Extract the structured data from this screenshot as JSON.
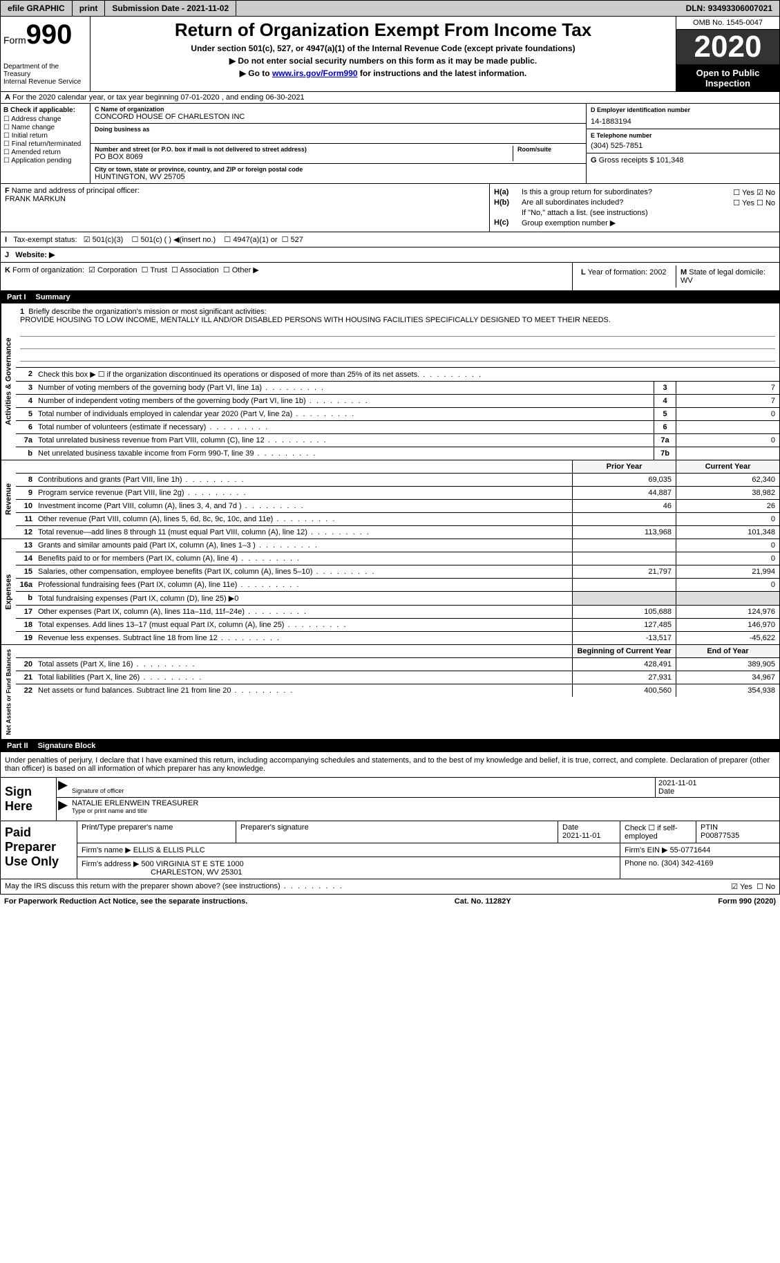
{
  "topbar": {
    "efile": "efile GRAPHIC",
    "print": "print",
    "subdate_lbl": "Submission Date - ",
    "subdate": "2021-11-02",
    "dln_lbl": "DLN: ",
    "dln": "93493306007021"
  },
  "header": {
    "form": "Form",
    "n990": "990",
    "dept": "Department of the Treasury\nInternal Revenue Service",
    "title": "Return of Organization Exempt From Income Tax",
    "sub1": "Under section 501(c), 527, or 4947(a)(1) of the Internal Revenue Code (except private foundations)",
    "sub2": "Do not enter social security numbers on this form as it may be made public.",
    "sub3a": "Go to ",
    "sub3link": "www.irs.gov/Form990",
    "sub3b": " for instructions and the latest information.",
    "omb": "OMB No. 1545-0047",
    "year": "2020",
    "inspect": "Open to Public Inspection"
  },
  "rowA": "For the 2020 calendar year, or tax year beginning 07-01-2020   , and ending 06-30-2021",
  "colB": {
    "lbl": "Check if applicable:",
    "items": [
      "Address change",
      "Name change",
      "Initial return",
      "Final return/terminated",
      "Amended return",
      "Application pending"
    ]
  },
  "colC": {
    "name_lbl": "Name of organization",
    "name": "CONCORD HOUSE OF CHARLESTON INC",
    "dba_lbl": "Doing business as",
    "addr_lbl": "Number and street (or P.O. box if mail is not delivered to street address)",
    "room_lbl": "Room/suite",
    "addr": "PO BOX 8069",
    "city_lbl": "City or town, state or province, country, and ZIP or foreign postal code",
    "city": "HUNTINGTON, WV  25705"
  },
  "colDE": {
    "d_lbl": "D Employer identification number",
    "d_val": "14-1883194",
    "e_lbl": "E Telephone number",
    "e_val": "(304) 525-7851",
    "g_lbl": "G",
    "g_txt": "Gross receipts $ 101,348"
  },
  "colF": {
    "lbl": "Name and address of principal officer:",
    "val": "FRANK MARKUN"
  },
  "colH": {
    "ha_lbl": "H(a)",
    "ha_txt": "Is this a group return for subordinates?",
    "hb_lbl": "H(b)",
    "hb_txt": "Are all subordinates included?",
    "hb_note": "If \"No,\" attach a list. (see instructions)",
    "hc_lbl": "H(c)",
    "hc_txt": "Group exemption number ▶",
    "yes": "Yes",
    "no": "No"
  },
  "rowI": {
    "lbl": "Tax-exempt status:",
    "o1": "501(c)(3)",
    "o2": "501(c) (  ) ◀(insert no.)",
    "o3": "4947(a)(1) or",
    "o4": "527"
  },
  "rowJ": {
    "lbl": "Website: ▶"
  },
  "rowK": {
    "lbl": "Form of organization:",
    "o1": "Corporation",
    "o2": "Trust",
    "o3": "Association",
    "o4": "Other ▶"
  },
  "rowL": {
    "lbl": "Year of formation: ",
    "val": "2002"
  },
  "rowM": {
    "lbl": "State of legal domicile: ",
    "val": "WV"
  },
  "part1": {
    "lbl": "Part I",
    "title": "Summary"
  },
  "mission": {
    "lbl": "Briefly describe the organization's mission or most significant activities:",
    "txt": "PROVIDE HOUSING TO LOW INCOME, MENTALLY ILL AND/OR DISABLED PERSONS WITH HOUSING FACILITIES SPECIFICALLY DESIGNED TO MEET THEIR NEEDS."
  },
  "gov_rows": [
    {
      "n": "2",
      "d": "Check this box ▶ ☐  if the organization discontinued its operations or disposed of more than 25% of its net assets."
    },
    {
      "n": "3",
      "d": "Number of voting members of the governing body (Part VI, line 1a)",
      "b": "3",
      "v": "7"
    },
    {
      "n": "4",
      "d": "Number of independent voting members of the governing body (Part VI, line 1b)",
      "b": "4",
      "v": "7"
    },
    {
      "n": "5",
      "d": "Total number of individuals employed in calendar year 2020 (Part V, line 2a)",
      "b": "5",
      "v": "0"
    },
    {
      "n": "6",
      "d": "Total number of volunteers (estimate if necessary)",
      "b": "6",
      "v": ""
    },
    {
      "n": "7a",
      "d": "Total unrelated business revenue from Part VIII, column (C), line 12",
      "b": "7a",
      "v": "0"
    },
    {
      "n": "b",
      "d": "Net unrelated business taxable income from Form 990-T, line 39",
      "b": "7b",
      "v": ""
    }
  ],
  "rev_hdr": {
    "py": "Prior Year",
    "cy": "Current Year"
  },
  "rev_rows": [
    {
      "n": "8",
      "d": "Contributions and grants (Part VIII, line 1h)",
      "py": "69,035",
      "cy": "62,340"
    },
    {
      "n": "9",
      "d": "Program service revenue (Part VIII, line 2g)",
      "py": "44,887",
      "cy": "38,982"
    },
    {
      "n": "10",
      "d": "Investment income (Part VIII, column (A), lines 3, 4, and 7d )",
      "py": "46",
      "cy": "26"
    },
    {
      "n": "11",
      "d": "Other revenue (Part VIII, column (A), lines 5, 6d, 8c, 9c, 10c, and 11e)",
      "py": "",
      "cy": "0"
    },
    {
      "n": "12",
      "d": "Total revenue—add lines 8 through 11 (must equal Part VIII, column (A), line 12)",
      "py": "113,968",
      "cy": "101,348"
    }
  ],
  "exp_rows": [
    {
      "n": "13",
      "d": "Grants and similar amounts paid (Part IX, column (A), lines 1–3 )",
      "py": "",
      "cy": "0"
    },
    {
      "n": "14",
      "d": "Benefits paid to or for members (Part IX, column (A), line 4)",
      "py": "",
      "cy": "0"
    },
    {
      "n": "15",
      "d": "Salaries, other compensation, employee benefits (Part IX, column (A), lines 5–10)",
      "py": "21,797",
      "cy": "21,994"
    },
    {
      "n": "16a",
      "d": "Professional fundraising fees (Part IX, column (A), line 11e)",
      "py": "",
      "cy": "0"
    },
    {
      "n": "b",
      "d": "Total fundraising expenses (Part IX, column (D), line 25) ▶0",
      "shade": true
    },
    {
      "n": "17",
      "d": "Other expenses (Part IX, column (A), lines 11a–11d, 11f–24e)",
      "py": "105,688",
      "cy": "124,976"
    },
    {
      "n": "18",
      "d": "Total expenses. Add lines 13–17 (must equal Part IX, column (A), line 25)",
      "py": "127,485",
      "cy": "146,970"
    },
    {
      "n": "19",
      "d": "Revenue less expenses. Subtract line 18 from line 12",
      "py": "-13,517",
      "cy": "-45,622"
    }
  ],
  "net_hdr": {
    "by": "Beginning of Current Year",
    "ey": "End of Year"
  },
  "net_rows": [
    {
      "n": "20",
      "d": "Total assets (Part X, line 16)",
      "py": "428,491",
      "cy": "389,905"
    },
    {
      "n": "21",
      "d": "Total liabilities (Part X, line 26)",
      "py": "27,931",
      "cy": "34,967"
    },
    {
      "n": "22",
      "d": "Net assets or fund balances. Subtract line 21 from line 20",
      "py": "400,560",
      "cy": "354,938"
    }
  ],
  "vtabs": {
    "gov": "Activities & Governance",
    "rev": "Revenue",
    "exp": "Expenses",
    "net": "Net Assets or Fund Balances"
  },
  "part2": {
    "lbl": "Part II",
    "title": "Signature Block"
  },
  "sig_intro": "Under penalties of perjury, I declare that I have examined this return, including accompanying schedules and statements, and to the best of my knowledge and belief, it is true, correct, and complete. Declaration of preparer (other than officer) is based on all information of which preparer has any knowledge.",
  "sign": {
    "lbl": "Sign Here",
    "sig_lbl": "Signature of officer",
    "date_lbl": "Date",
    "date": "2021-11-01",
    "name": "NATALIE ERLENWEIN TREASURER",
    "name_lbl": "Type or print name and title"
  },
  "prep": {
    "lbl": "Paid Preparer Use Only",
    "h1": "Print/Type preparer's name",
    "h2": "Preparer's signature",
    "h3": "Date",
    "h3v": "2021-11-01",
    "h4": "Check ☐ if self-employed",
    "h5": "PTIN",
    "h5v": "P00877535",
    "firm_lbl": "Firm's name   ▶",
    "firm": "ELLIS & ELLIS PLLC",
    "ein_lbl": "Firm's EIN ▶",
    "ein": "55-0771644",
    "addr_lbl": "Firm's address ▶",
    "addr": "500 VIRGINIA ST E STE 1000",
    "city": "CHARLESTON, WV  25301",
    "phone_lbl": "Phone no. ",
    "phone": "(304) 342-4169"
  },
  "footer": {
    "q": "May the IRS discuss this return with the preparer shown above? (see instructions)",
    "yes": "Yes",
    "no": "No",
    "pra": "For Paperwork Reduction Act Notice, see the separate instructions.",
    "cat": "Cat. No. 11282Y",
    "form": "Form 990 (2020)"
  }
}
